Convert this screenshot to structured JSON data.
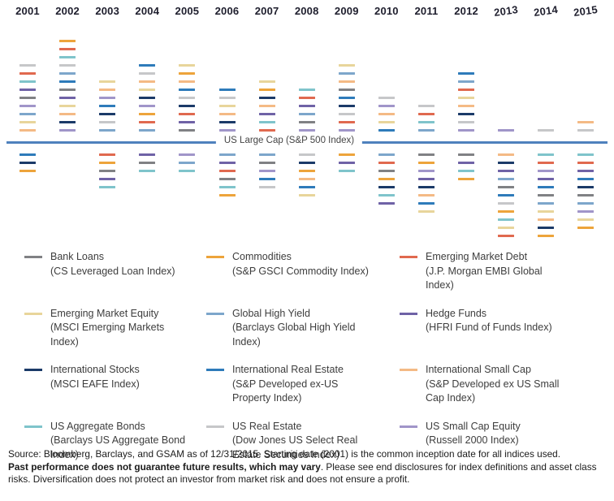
{
  "chart_data": {
    "type": "table",
    "subtype": "relative-performance-ranking",
    "title": "",
    "baseline_label": "US Large Cap (S&P 500 Index)",
    "years": [
      "2001",
      "2002",
      "2003",
      "2004",
      "2005",
      "2006",
      "2007",
      "2008",
      "2009",
      "2010",
      "2011",
      "2012",
      "2013",
      "2014",
      "2015"
    ],
    "asset_classes": [
      {
        "id": "bank_loans",
        "label": "Bank Loans",
        "index_label": "(CS Leveraged Loan Index)",
        "color": "#808184"
      },
      {
        "id": "commodities",
        "label": "Commodities",
        "index_label": "(S&P GSCI Commodity Index)",
        "color": "#eda43b"
      },
      {
        "id": "em_debt",
        "label": "Emerging Market Debt",
        "index_label": "(J.P. Morgan EMBI Global Index)",
        "color": "#e0694f"
      },
      {
        "id": "em_equity",
        "label": "Emerging Market Equity",
        "index_label": "(MSCI Emerging Markets Index)",
        "color": "#e8d59b"
      },
      {
        "id": "global_high_yield",
        "label": "Global High Yield",
        "index_label": "(Barclays Global High Yield Index)",
        "color": "#7da6cb"
      },
      {
        "id": "hedge_funds",
        "label": "Hedge Funds",
        "index_label": "(HFRI Fund of Funds Index)",
        "color": "#6f62a6"
      },
      {
        "id": "intl_stocks",
        "label": "International Stocks",
        "index_label": "(MSCI EAFE Index)",
        "color": "#1b3a68"
      },
      {
        "id": "intl_real_estate",
        "label": "International Real Estate",
        "index_label": "(S&P Developed ex-US Property Index)",
        "color": "#2e7bba"
      },
      {
        "id": "intl_small_cap",
        "label": "International Small Cap",
        "index_label": "(S&P Developed ex US Small Cap Index)",
        "color": "#f4ba85"
      },
      {
        "id": "us_agg_bonds",
        "label": "US Aggregate Bonds",
        "index_label": "(Barclays US Aggregate Bond Index)",
        "color": "#7fc4cb"
      },
      {
        "id": "us_real_estate",
        "label": "US Real Estate",
        "index_label": "(Dow Jones US Select Real Estate Securities Index)",
        "color": "#c6c7c9"
      },
      {
        "id": "us_small_cap",
        "label": "US Small Cap Equity",
        "index_label": "(Russell 2000 Index)",
        "color": "#a095c9"
      }
    ],
    "ranking": {
      "2001": {
        "above": [
          "us_real_estate",
          "em_debt",
          "us_agg_bonds",
          "hedge_funds",
          "bank_loans",
          "us_small_cap",
          "global_high_yield",
          "em_equity",
          "intl_small_cap"
        ],
        "below": [
          "intl_real_estate",
          "intl_stocks",
          "commodities"
        ]
      },
      "2002": {
        "above": [
          "commodities",
          "em_debt",
          "us_agg_bonds",
          "us_real_estate",
          "global_high_yield",
          "intl_real_estate",
          "bank_loans",
          "hedge_funds",
          "em_equity",
          "intl_small_cap",
          "intl_stocks",
          "us_small_cap"
        ],
        "below": []
      },
      "2003": {
        "above": [
          "em_equity",
          "intl_small_cap",
          "us_small_cap",
          "intl_real_estate",
          "intl_stocks",
          "us_real_estate",
          "global_high_yield"
        ],
        "below": [
          "em_debt",
          "commodities",
          "bank_loans",
          "hedge_funds",
          "us_agg_bonds"
        ]
      },
      "2004": {
        "above": [
          "intl_real_estate",
          "us_real_estate",
          "intl_small_cap",
          "em_equity",
          "intl_stocks",
          "us_small_cap",
          "commodities",
          "em_debt",
          "global_high_yield"
        ],
        "below": [
          "hedge_funds",
          "bank_loans",
          "us_agg_bonds"
        ]
      },
      "2005": {
        "above": [
          "em_equity",
          "commodities",
          "intl_small_cap",
          "intl_real_estate",
          "us_real_estate",
          "intl_stocks",
          "em_debt",
          "hedge_funds",
          "bank_loans"
        ],
        "below": [
          "us_small_cap",
          "global_high_yield",
          "us_agg_bonds"
        ]
      },
      "2006": {
        "above": [
          "intl_real_estate",
          "us_real_estate",
          "em_equity",
          "intl_small_cap",
          "intl_stocks",
          "us_small_cap"
        ],
        "below": [
          "global_high_yield",
          "hedge_funds",
          "em_debt",
          "bank_loans",
          "us_agg_bonds",
          "commodities"
        ]
      },
      "2007": {
        "above": [
          "em_equity",
          "commodities",
          "intl_stocks",
          "intl_small_cap",
          "hedge_funds",
          "us_agg_bonds",
          "em_debt"
        ],
        "below": [
          "global_high_yield",
          "bank_loans",
          "us_small_cap",
          "intl_real_estate",
          "us_real_estate"
        ]
      },
      "2008": {
        "above": [
          "us_agg_bonds",
          "em_debt",
          "hedge_funds",
          "global_high_yield",
          "bank_loans",
          "us_small_cap"
        ],
        "below": [
          "us_real_estate",
          "intl_stocks",
          "commodities",
          "intl_small_cap",
          "intl_real_estate",
          "em_equity"
        ]
      },
      "2009": {
        "above": [
          "em_equity",
          "global_high_yield",
          "intl_small_cap",
          "bank_loans",
          "intl_real_estate",
          "intl_stocks",
          "us_real_estate",
          "em_debt",
          "us_small_cap"
        ],
        "below": [
          "commodities",
          "hedge_funds",
          "us_agg_bonds"
        ]
      },
      "2010": {
        "above": [
          "us_real_estate",
          "us_small_cap",
          "intl_small_cap",
          "em_equity",
          "intl_real_estate"
        ],
        "below": [
          "global_high_yield",
          "em_debt",
          "bank_loans",
          "commodities",
          "intl_stocks",
          "us_agg_bonds",
          "hedge_funds"
        ]
      },
      "2011": {
        "above": [
          "us_real_estate",
          "em_debt",
          "us_agg_bonds",
          "global_high_yield"
        ],
        "below": [
          "bank_loans",
          "commodities",
          "us_small_cap",
          "hedge_funds",
          "intl_stocks",
          "intl_small_cap",
          "intl_real_estate",
          "em_equity"
        ]
      },
      "2012": {
        "above": [
          "intl_real_estate",
          "global_high_yield",
          "em_debt",
          "em_equity",
          "intl_small_cap",
          "intl_stocks",
          "us_real_estate",
          "us_small_cap"
        ],
        "below": [
          "bank_loans",
          "hedge_funds",
          "us_agg_bonds",
          "commodities"
        ]
      },
      "2013": {
        "above": [
          "us_small_cap"
        ],
        "below": [
          "intl_small_cap",
          "intl_stocks",
          "hedge_funds",
          "global_high_yield",
          "bank_loans",
          "intl_real_estate",
          "us_real_estate",
          "commodities",
          "us_agg_bonds",
          "em_equity",
          "em_debt"
        ]
      },
      "2014": {
        "above": [
          "us_real_estate"
        ],
        "below": [
          "us_agg_bonds",
          "em_debt",
          "us_small_cap",
          "hedge_funds",
          "intl_real_estate",
          "bank_loans",
          "global_high_yield",
          "em_equity",
          "intl_small_cap",
          "intl_stocks",
          "commodities"
        ]
      },
      "2015": {
        "above": [
          "intl_small_cap",
          "us_real_estate"
        ],
        "below": [
          "us_agg_bonds",
          "em_debt",
          "hedge_funds",
          "intl_real_estate",
          "intl_stocks",
          "bank_loans",
          "global_high_yield",
          "us_small_cap",
          "em_equity",
          "commodities"
        ]
      }
    },
    "baseline_color": "#4f81bd"
  },
  "source": {
    "seg1": "Source: Bloomberg, Barclays, and GSAM as of 12/31/2015. Starting date (2001) is the common inception date for all indices used.",
    "seg_bold": "Past performance does not guarantee future results, which may vary",
    "seg2": ". Please see end disclosures for index definitions and asset class risks. Diversification does not protect an investor from market risk and does not ensure a profit."
  }
}
